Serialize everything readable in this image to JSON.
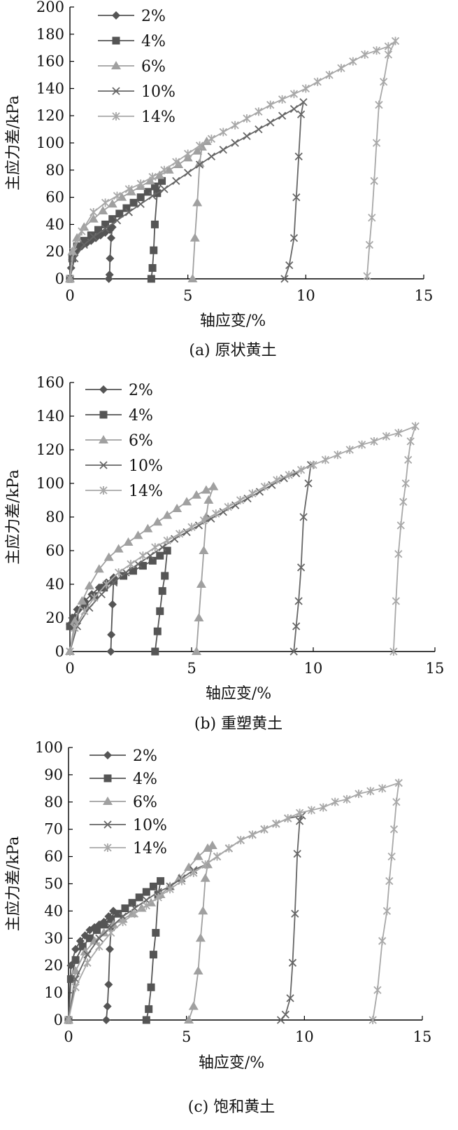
{
  "chart_data": [
    {
      "type": "line",
      "caption": "(a) 原状黄土",
      "xlabel": "轴应变/%",
      "ylabel": "主应力差/kPa",
      "xlim": [
        0,
        15
      ],
      "ylim": [
        0,
        200
      ],
      "xticks": [
        0,
        5,
        10,
        15
      ],
      "yticks": [
        0,
        20,
        40,
        60,
        80,
        100,
        120,
        140,
        160,
        180,
        200
      ],
      "legend_position": "top-left",
      "grid": false,
      "series": [
        {
          "name": "2%",
          "marker": "diamond",
          "color": "#555555",
          "x": [
            0,
            0.05,
            0.1,
            0.2,
            0.35,
            0.5,
            0.7,
            0.9,
            1.1,
            1.3,
            1.5,
            1.7,
            1.8,
            1.75,
            1.7,
            1.68,
            1.65
          ],
          "y": [
            0,
            8,
            14,
            19,
            22,
            24,
            26,
            28,
            30,
            32,
            34,
            36,
            38,
            30,
            15,
            3,
            0
          ]
        },
        {
          "name": "4%",
          "marker": "square",
          "color": "#555555",
          "x": [
            0,
            0.1,
            0.3,
            0.6,
            0.9,
            1.2,
            1.5,
            1.8,
            2.1,
            2.4,
            2.7,
            3.0,
            3.3,
            3.6,
            3.9,
            3.7,
            3.6,
            3.55,
            3.5,
            3.45
          ],
          "y": [
            0,
            15,
            24,
            28,
            32,
            36,
            40,
            44,
            48,
            52,
            56,
            60,
            64,
            68,
            72,
            63,
            40,
            21,
            8,
            0
          ]
        },
        {
          "name": "6%",
          "marker": "triangle",
          "color": "#a0a0a0",
          "x": [
            0,
            0.1,
            0.3,
            0.6,
            1.0,
            1.4,
            1.8,
            2.2,
            2.6,
            3.0,
            3.4,
            3.8,
            4.2,
            4.6,
            5.0,
            5.4,
            5.8,
            5.6,
            5.5,
            5.4,
            5.3,
            5.2
          ],
          "y": [
            0,
            20,
            30,
            38,
            44,
            50,
            55,
            60,
            64,
            68,
            72,
            76,
            80,
            84,
            89,
            94,
            101,
            97,
            85,
            56,
            30,
            0
          ]
        },
        {
          "name": "10%",
          "marker": "x",
          "color": "#666666",
          "x": [
            0,
            0.2,
            0.6,
            1.0,
            1.5,
            2.0,
            2.5,
            3.0,
            3.5,
            4.0,
            4.5,
            5.0,
            5.5,
            6.0,
            6.5,
            7.0,
            7.5,
            8.0,
            8.5,
            9.0,
            9.5,
            9.9,
            9.8,
            9.7,
            9.6,
            9.5,
            9.3,
            9.1
          ],
          "y": [
            0,
            15,
            25,
            31,
            37,
            43,
            49,
            55,
            61,
            66,
            72,
            78,
            84,
            90,
            95,
            100,
            105,
            110,
            115,
            120,
            125,
            130,
            121,
            90,
            60,
            30,
            10,
            0
          ]
        },
        {
          "name": "14%",
          "marker": "asterisk",
          "color": "#a8a8a8",
          "x": [
            0,
            0.15,
            0.5,
            1.0,
            1.5,
            2.0,
            2.5,
            3.0,
            3.5,
            4.0,
            4.5,
            5.0,
            5.5,
            6.0,
            6.5,
            7.0,
            7.5,
            8.0,
            8.5,
            9.0,
            9.5,
            10.0,
            10.5,
            11.0,
            11.5,
            12.0,
            12.5,
            13.0,
            13.5,
            13.8,
            13.5,
            13.3,
            13.1,
            13.0,
            12.9,
            12.8,
            12.7,
            12.6
          ],
          "y": [
            0,
            20,
            35,
            49,
            56,
            61,
            66,
            70,
            75,
            80,
            86,
            92,
            98,
            103,
            108,
            113,
            118,
            123,
            128,
            132,
            136,
            140,
            145,
            150,
            155,
            160,
            165,
            168,
            171,
            175,
            165,
            145,
            128,
            100,
            72,
            45,
            25,
            2
          ]
        }
      ]
    },
    {
      "type": "line",
      "caption": "(b) 重塑黄土",
      "xlabel": "轴应变/%",
      "ylabel": "主应力差/kPa",
      "xlim": [
        0,
        15
      ],
      "ylim": [
        0,
        160
      ],
      "xticks": [
        0,
        5,
        10,
        15
      ],
      "yticks": [
        0,
        20,
        40,
        60,
        80,
        100,
        120,
        140,
        160
      ],
      "legend_position": "top-left",
      "grid": false,
      "series": [
        {
          "name": "2%",
          "marker": "diamond",
          "color": "#555555",
          "x": [
            0,
            0.1,
            0.3,
            0.6,
            0.9,
            1.2,
            1.5,
            1.8,
            1.75,
            1.7,
            1.68
          ],
          "y": [
            16,
            20,
            25,
            30,
            34,
            38,
            41,
            44,
            28,
            10,
            0
          ]
        },
        {
          "name": "4%",
          "marker": "square",
          "color": "#555555",
          "x": [
            0,
            0.2,
            0.6,
            1.0,
            1.4,
            1.8,
            2.2,
            2.6,
            3.0,
            3.4,
            3.7,
            4.0,
            3.9,
            3.8,
            3.7,
            3.6,
            3.5
          ],
          "y": [
            15,
            20,
            27,
            33,
            38,
            42,
            45,
            48,
            51,
            54,
            57,
            60,
            45,
            36,
            24,
            12,
            0
          ]
        },
        {
          "name": "6%",
          "marker": "triangle",
          "color": "#a0a0a0",
          "x": [
            0,
            0.2,
            0.5,
            0.8,
            1.2,
            1.6,
            2.0,
            2.4,
            2.8,
            3.2,
            3.6,
            4.0,
            4.4,
            4.8,
            5.2,
            5.6,
            5.9,
            5.7,
            5.6,
            5.5,
            5.4,
            5.3,
            5.2
          ],
          "y": [
            0,
            18,
            30,
            39,
            49,
            56,
            61,
            65,
            69,
            73,
            77,
            81,
            85,
            89,
            93,
            96,
            98,
            90,
            80,
            60,
            40,
            20,
            0
          ]
        },
        {
          "name": "10%",
          "marker": "x",
          "color": "#666666",
          "x": [
            0,
            0.3,
            0.8,
            1.3,
            1.8,
            2.3,
            2.8,
            3.3,
            3.8,
            4.3,
            4.8,
            5.3,
            5.8,
            6.3,
            6.8,
            7.3,
            7.8,
            8.3,
            8.8,
            9.3,
            9.9,
            9.8,
            9.6,
            9.5,
            9.4,
            9.3,
            9.2
          ],
          "y": [
            0,
            15,
            26,
            34,
            41,
            47,
            52,
            57,
            62,
            67,
            71,
            75,
            79,
            83,
            87,
            91,
            95,
            99,
            103,
            106,
            111,
            100,
            80,
            50,
            30,
            15,
            0
          ]
        },
        {
          "name": "14%",
          "marker": "asterisk",
          "color": "#a8a8a8",
          "x": [
            0,
            0.2,
            0.6,
            1.0,
            1.5,
            2.0,
            2.5,
            3.0,
            3.5,
            4.0,
            4.5,
            5.0,
            5.5,
            6.0,
            6.5,
            7.0,
            7.5,
            8.0,
            8.5,
            9.0,
            9.5,
            10.0,
            10.5,
            11.0,
            11.5,
            12.0,
            12.5,
            13.0,
            13.5,
            14.2,
            14.0,
            13.9,
            13.8,
            13.7,
            13.6,
            13.5,
            13.4,
            13.3
          ],
          "y": [
            0,
            14,
            24,
            32,
            40,
            47,
            52,
            57,
            62,
            66,
            70,
            74,
            78,
            82,
            86,
            90,
            94,
            98,
            102,
            105,
            108,
            111,
            114,
            117,
            120,
            123,
            125,
            128,
            130,
            134,
            125,
            114,
            100,
            89,
            75,
            58,
            30,
            0
          ]
        }
      ]
    },
    {
      "type": "line",
      "caption": "(c) 饱和黄土",
      "xlabel": "轴应变/%",
      "ylabel": "主应力差/kPa",
      "xlim": [
        0,
        15
      ],
      "ylim": [
        0,
        100
      ],
      "xticks": [
        0,
        5,
        10,
        15
      ],
      "yticks": [
        0,
        10,
        20,
        30,
        40,
        50,
        60,
        70,
        80,
        90,
        100
      ],
      "legend_position": "top-left",
      "grid": false,
      "series": [
        {
          "name": "2%",
          "marker": "diamond",
          "color": "#555555",
          "x": [
            0,
            0.1,
            0.3,
            0.5,
            0.7,
            0.9,
            1.1,
            1.3,
            1.5,
            1.7,
            1.9,
            1.8,
            1.75,
            1.7,
            1.65,
            1.6
          ],
          "y": [
            0,
            20,
            26,
            29,
            31,
            33,
            34,
            35,
            36,
            38,
            40,
            34,
            26,
            13,
            5,
            0
          ]
        },
        {
          "name": "4%",
          "marker": "square",
          "color": "#555555",
          "x": [
            0,
            0.1,
            0.3,
            0.6,
            0.9,
            1.2,
            1.5,
            1.8,
            2.1,
            2.4,
            2.7,
            3.0,
            3.3,
            3.6,
            3.9,
            3.8,
            3.7,
            3.6,
            3.5,
            3.4,
            3.3
          ],
          "y": [
            0,
            15,
            22,
            27,
            30,
            33,
            35,
            37,
            39,
            41,
            43,
            45,
            47,
            49,
            51,
            46,
            32,
            24,
            12,
            4,
            0
          ]
        },
        {
          "name": "6%",
          "marker": "triangle",
          "color": "#a0a0a0",
          "x": [
            0,
            0.3,
            0.7,
            1.1,
            1.5,
            1.9,
            2.3,
            2.7,
            3.1,
            3.5,
            3.9,
            4.3,
            4.7,
            5.1,
            5.5,
            5.9,
            6.1,
            5.9,
            5.8,
            5.7,
            5.6,
            5.5,
            5.3,
            5.1
          ],
          "y": [
            0,
            18,
            25,
            29,
            32,
            35,
            37,
            39,
            41,
            43,
            46,
            49,
            52,
            56,
            60,
            63,
            64,
            57,
            52,
            40,
            30,
            18,
            5,
            0
          ]
        },
        {
          "name": "10%",
          "marker": "x",
          "color": "#666666",
          "x": [
            0,
            0.3,
            0.8,
            1.3,
            1.8,
            2.3,
            2.8,
            3.3,
            3.8,
            4.3,
            4.8,
            5.3,
            5.8,
            6.3,
            6.8,
            7.3,
            7.8,
            8.3,
            8.8,
            9.3,
            9.9,
            9.8,
            9.7,
            9.6,
            9.5,
            9.4,
            9.2,
            9.0
          ],
          "y": [
            0,
            15,
            24,
            30,
            34,
            38,
            41,
            44,
            47,
            49,
            52,
            55,
            57,
            60,
            63,
            66,
            68,
            70,
            72,
            74,
            75,
            73,
            61,
            39,
            21,
            8,
            2,
            0
          ]
        },
        {
          "name": "14%",
          "marker": "asterisk",
          "color": "#a8a8a8",
          "x": [
            0,
            0.3,
            0.8,
            1.3,
            1.8,
            2.3,
            2.8,
            3.3,
            3.8,
            4.3,
            4.8,
            5.3,
            5.8,
            6.3,
            6.8,
            7.3,
            7.8,
            8.3,
            8.8,
            9.3,
            9.8,
            10.3,
            10.8,
            11.3,
            11.8,
            12.3,
            12.8,
            13.3,
            14.0,
            13.9,
            13.8,
            13.7,
            13.6,
            13.5,
            13.3,
            13.1,
            12.9
          ],
          "y": [
            0,
            12,
            21,
            27,
            32,
            36,
            39,
            42,
            45,
            48,
            51,
            54,
            57,
            60,
            63,
            66,
            68,
            70,
            72,
            74,
            76,
            77,
            78,
            80,
            81,
            83,
            84,
            85,
            87,
            80,
            70,
            60,
            51,
            40,
            29,
            11,
            0
          ]
        }
      ]
    }
  ]
}
